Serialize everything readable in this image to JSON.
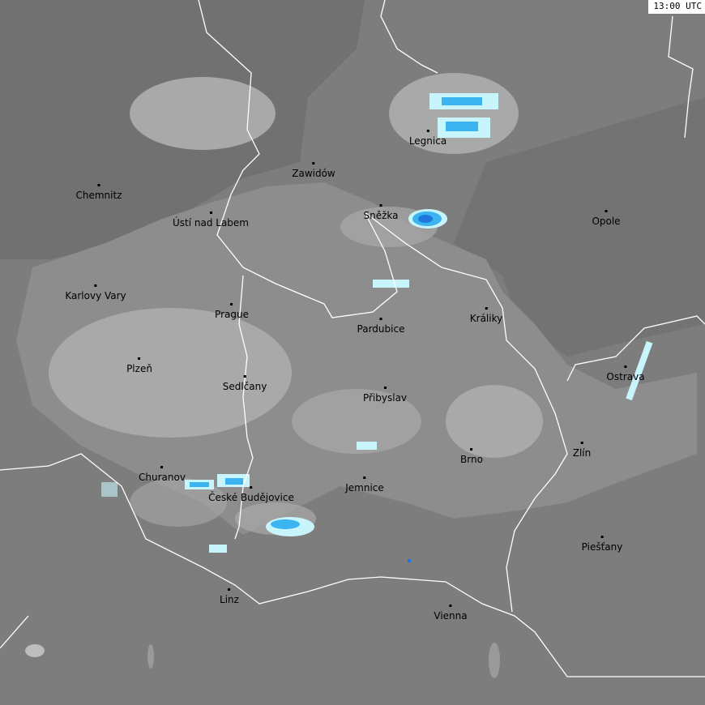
{
  "timestamp": "13:00 UTC",
  "colors": {
    "background": "#7d7d7d",
    "dark_region": "#6f6f6f",
    "light_region": "#8d8d8d",
    "cloud": "#a9a9a9",
    "cloud_light": "#bdbdbd",
    "precip_light": "#c8f4fc",
    "precip_mid": "#3cb4f0",
    "precip_heavy": "#1e78dc",
    "border": "#ffffff",
    "label": "#000000"
  },
  "cities": [
    {
      "name": "Legnica"
    },
    {
      "name": "Zawidów"
    },
    {
      "name": "Chemnitz"
    },
    {
      "name": "Ústí nad Labem"
    },
    {
      "name": "Sněžka"
    },
    {
      "name": "Opole"
    },
    {
      "name": "Karlovy Vary"
    },
    {
      "name": "Prague"
    },
    {
      "name": "Králiky"
    },
    {
      "name": "Pardubice"
    },
    {
      "name": "Plzeň"
    },
    {
      "name": "Ostrava"
    },
    {
      "name": "Sedlčany"
    },
    {
      "name": "Přibyslav"
    },
    {
      "name": "Zlín"
    },
    {
      "name": "Brno"
    },
    {
      "name": "Churanov"
    },
    {
      "name": "Jemnice"
    },
    {
      "name": "České Budějovice"
    },
    {
      "name": "Piešťany"
    },
    {
      "name": "Linz"
    },
    {
      "name": "Vienna"
    }
  ]
}
